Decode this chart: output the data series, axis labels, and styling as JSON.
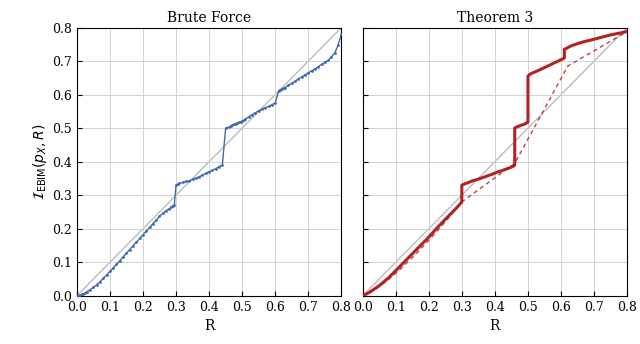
{
  "title_left": "Brute Force",
  "title_right": "Theorem 3",
  "xlabel": "R",
  "ylabel": "$\\mathcal{I}_{\\mathrm{EBIM}}(p_X, R)$",
  "xlim": [
    0.0,
    0.8
  ],
  "ylim": [
    0.0,
    0.8
  ],
  "xticks": [
    0.0,
    0.1,
    0.2,
    0.3,
    0.4,
    0.5,
    0.6,
    0.7,
    0.8
  ],
  "yticks": [
    0.0,
    0.1,
    0.2,
    0.3,
    0.4,
    0.5,
    0.6,
    0.7,
    0.8
  ],
  "diag_color": "#bbbbbb",
  "blue_color": "#4169b0",
  "red_color": "#b22222",
  "figsize": [
    6.4,
    3.44
  ],
  "dpi": 100,
  "bf_x": [
    0.0,
    0.005,
    0.01,
    0.015,
    0.02,
    0.025,
    0.03,
    0.04,
    0.05,
    0.06,
    0.07,
    0.08,
    0.09,
    0.1,
    0.11,
    0.12,
    0.13,
    0.14,
    0.15,
    0.16,
    0.17,
    0.18,
    0.19,
    0.2,
    0.21,
    0.22,
    0.23,
    0.24,
    0.25,
    0.26,
    0.27,
    0.28,
    0.285,
    0.29,
    0.295,
    0.3,
    0.305,
    0.31,
    0.32,
    0.33,
    0.34,
    0.35,
    0.36,
    0.37,
    0.38,
    0.39,
    0.4,
    0.41,
    0.42,
    0.43,
    0.44,
    0.45,
    0.46,
    0.465,
    0.47,
    0.475,
    0.48,
    0.485,
    0.49,
    0.495,
    0.5,
    0.505,
    0.51,
    0.52,
    0.53,
    0.54,
    0.55,
    0.56,
    0.57,
    0.58,
    0.59,
    0.6,
    0.61,
    0.615,
    0.62,
    0.625,
    0.63,
    0.64,
    0.65,
    0.66,
    0.67,
    0.68,
    0.69,
    0.7,
    0.71,
    0.72,
    0.73,
    0.74,
    0.75,
    0.76,
    0.77,
    0.78,
    0.79,
    0.8
  ],
  "bf_y": [
    0.0,
    0.001,
    0.002,
    0.004,
    0.006,
    0.009,
    0.012,
    0.018,
    0.025,
    0.033,
    0.042,
    0.052,
    0.062,
    0.073,
    0.083,
    0.094,
    0.105,
    0.116,
    0.127,
    0.138,
    0.149,
    0.16,
    0.171,
    0.182,
    0.193,
    0.204,
    0.215,
    0.226,
    0.237,
    0.246,
    0.254,
    0.26,
    0.265,
    0.268,
    0.272,
    0.33,
    0.333,
    0.335,
    0.338,
    0.341,
    0.343,
    0.347,
    0.351,
    0.355,
    0.36,
    0.365,
    0.37,
    0.374,
    0.379,
    0.385,
    0.39,
    0.5,
    0.503,
    0.506,
    0.509,
    0.511,
    0.513,
    0.515,
    0.517,
    0.519,
    0.521,
    0.524,
    0.527,
    0.534,
    0.54,
    0.546,
    0.552,
    0.557,
    0.561,
    0.565,
    0.57,
    0.575,
    0.61,
    0.614,
    0.617,
    0.619,
    0.621,
    0.628,
    0.634,
    0.64,
    0.647,
    0.653,
    0.659,
    0.665,
    0.671,
    0.677,
    0.683,
    0.69,
    0.696,
    0.702,
    0.713,
    0.724,
    0.748,
    0.78
  ],
  "t3_solid_x": [
    0.0,
    0.02,
    0.05,
    0.08,
    0.1,
    0.13,
    0.15,
    0.18,
    0.2,
    0.22,
    0.24,
    0.26,
    0.28,
    0.295,
    0.3,
    0.3,
    0.31,
    0.32,
    0.33,
    0.35,
    0.37,
    0.39,
    0.4,
    0.42,
    0.44,
    0.455,
    0.46,
    0.46,
    0.465,
    0.47,
    0.475,
    0.48,
    0.49,
    0.495,
    0.5,
    0.5,
    0.505,
    0.51,
    0.52,
    0.54,
    0.56,
    0.58,
    0.6,
    0.605,
    0.61,
    0.61,
    0.615,
    0.62,
    0.63,
    0.65,
    0.67,
    0.7,
    0.73,
    0.75,
    0.78,
    0.8
  ],
  "t3_solid_y": [
    0.0,
    0.01,
    0.03,
    0.055,
    0.075,
    0.105,
    0.125,
    0.155,
    0.175,
    0.197,
    0.218,
    0.238,
    0.258,
    0.274,
    0.28,
    0.33,
    0.334,
    0.338,
    0.342,
    0.348,
    0.355,
    0.362,
    0.366,
    0.373,
    0.38,
    0.386,
    0.39,
    0.5,
    0.503,
    0.505,
    0.507,
    0.509,
    0.512,
    0.515,
    0.518,
    0.655,
    0.66,
    0.663,
    0.667,
    0.676,
    0.685,
    0.695,
    0.704,
    0.706,
    0.709,
    0.735,
    0.737,
    0.74,
    0.745,
    0.752,
    0.758,
    0.765,
    0.773,
    0.778,
    0.784,
    0.788
  ]
}
